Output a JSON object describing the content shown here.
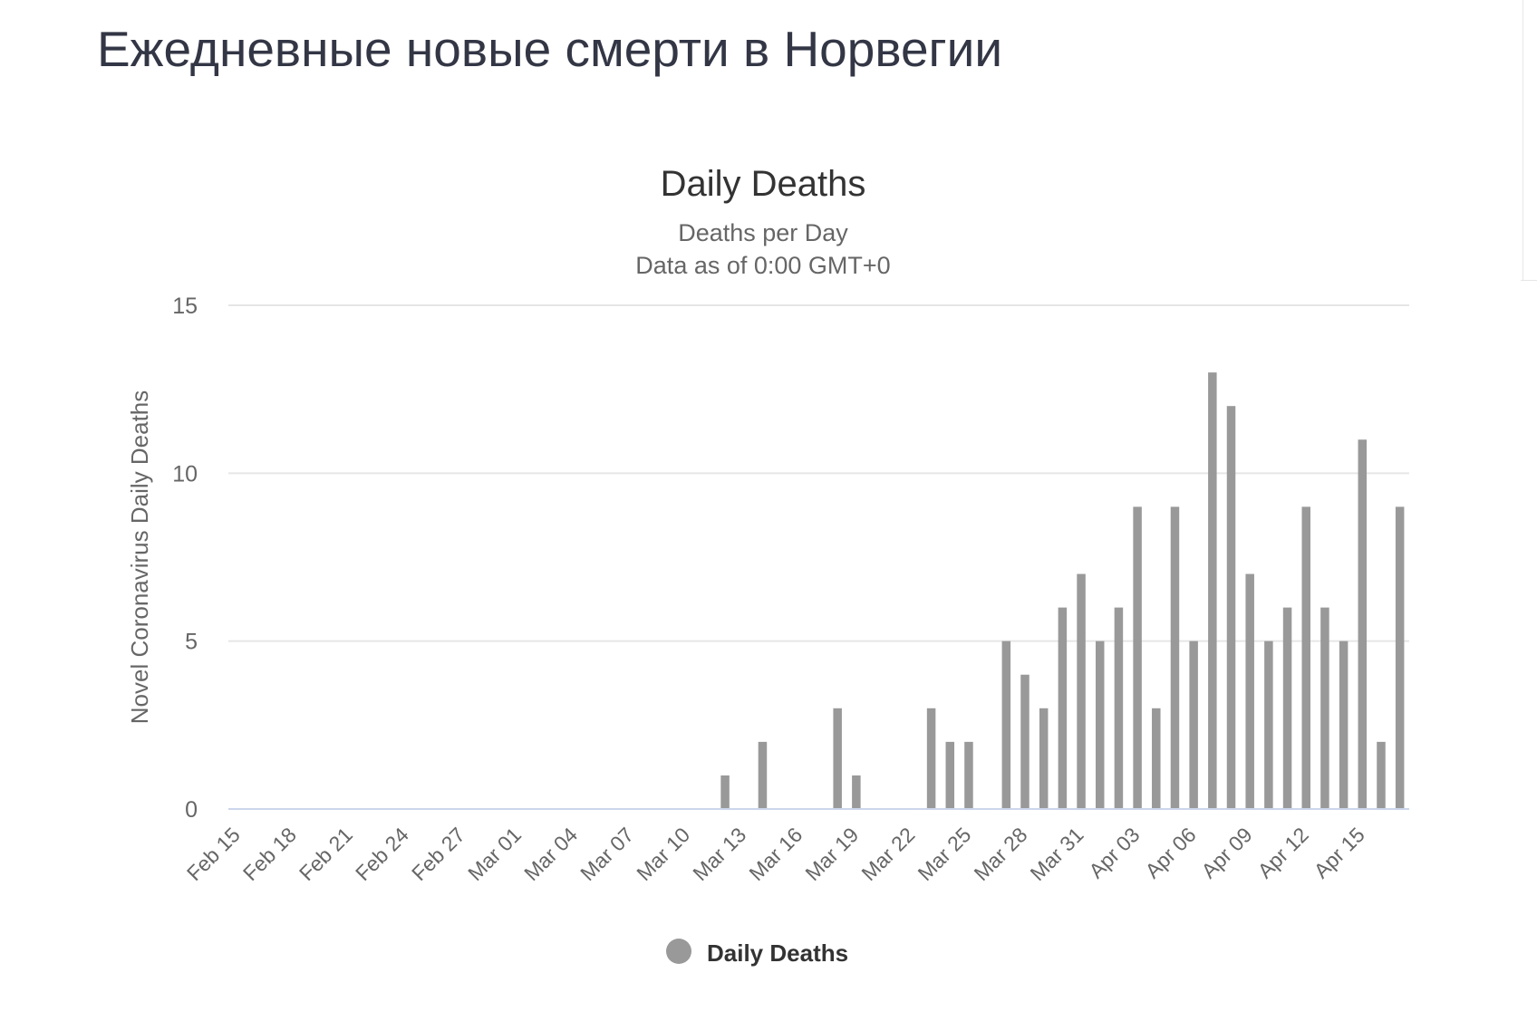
{
  "page": {
    "title": "Ежедневные новые смерти в Норвегии"
  },
  "chart_data": {
    "type": "bar",
    "title": "Daily Deaths",
    "subtitle_lines": [
      "Deaths per Day",
      "Data as of 0:00 GMT+0"
    ],
    "ylabel": "Novel Coronavirus Daily Deaths",
    "xlabel": "",
    "ylim": [
      0,
      15
    ],
    "yticks": [
      0,
      5,
      10,
      15
    ],
    "grid": true,
    "legend_position": "bottom-center",
    "bar_color": "#999999",
    "grid_color": "#e6e6e6",
    "baseline_color": "#ccd6eb",
    "tick_labels": [
      "Feb 15",
      "Feb 18",
      "Feb 21",
      "Feb 24",
      "Feb 27",
      "Mar 01",
      "Mar 04",
      "Mar 07",
      "Mar 10",
      "Mar 13",
      "Mar 16",
      "Mar 19",
      "Mar 22",
      "Mar 25",
      "Mar 28",
      "Mar 31",
      "Apr 03",
      "Apr 06",
      "Apr 09",
      "Apr 12",
      "Apr 15"
    ],
    "categories": [
      "Feb 15",
      "Feb 16",
      "Feb 17",
      "Feb 18",
      "Feb 19",
      "Feb 20",
      "Feb 21",
      "Feb 22",
      "Feb 23",
      "Feb 24",
      "Feb 25",
      "Feb 26",
      "Feb 27",
      "Feb 28",
      "Feb 29",
      "Mar 01",
      "Mar 02",
      "Mar 03",
      "Mar 04",
      "Mar 05",
      "Mar 06",
      "Mar 07",
      "Mar 08",
      "Mar 09",
      "Mar 10",
      "Mar 11",
      "Mar 12",
      "Mar 13",
      "Mar 14",
      "Mar 15",
      "Mar 16",
      "Mar 17",
      "Mar 18",
      "Mar 19",
      "Mar 20",
      "Mar 21",
      "Mar 22",
      "Mar 23",
      "Mar 24",
      "Mar 25",
      "Mar 26",
      "Mar 27",
      "Mar 28",
      "Mar 29",
      "Mar 30",
      "Mar 31",
      "Apr 01",
      "Apr 02",
      "Apr 03",
      "Apr 04",
      "Apr 05",
      "Apr 06",
      "Apr 07",
      "Apr 08",
      "Apr 09",
      "Apr 10",
      "Apr 11",
      "Apr 12",
      "Apr 13",
      "Apr 14",
      "Apr 15",
      "Apr 16",
      "Apr 17"
    ],
    "series": [
      {
        "name": "Daily Deaths",
        "values": [
          0,
          0,
          0,
          0,
          0,
          0,
          0,
          0,
          0,
          0,
          0,
          0,
          0,
          0,
          0,
          0,
          0,
          0,
          0,
          0,
          0,
          0,
          0,
          0,
          0,
          0,
          1,
          0,
          2,
          0,
          0,
          0,
          3,
          1,
          0,
          0,
          0,
          3,
          2,
          2,
          0,
          5,
          4,
          3,
          6,
          7,
          5,
          6,
          9,
          3,
          9,
          5,
          13,
          12,
          7,
          5,
          6,
          9,
          6,
          5,
          11,
          2,
          9
        ]
      }
    ]
  }
}
